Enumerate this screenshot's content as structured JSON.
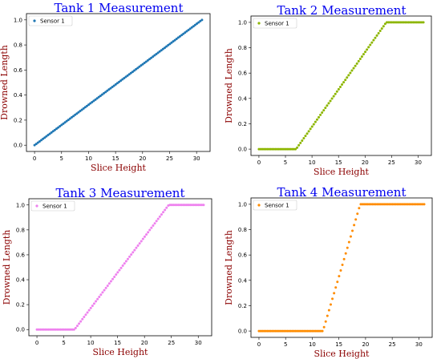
{
  "chart_data": [
    {
      "type": "scatter",
      "title": "Tank 1 Measurement",
      "xlabel": "Slice Height",
      "ylabel": "Drowned Length",
      "xticks": [
        0,
        5,
        10,
        15,
        20,
        25,
        30
      ],
      "yticks": [
        0.0,
        0.2,
        0.4,
        0.6,
        0.8,
        1.0
      ],
      "xlim": [
        -1.5,
        32.5
      ],
      "ylim": [
        -0.05,
        1.05
      ],
      "grid": false,
      "legend_position": "top-left",
      "series": [
        {
          "name": "Sensor 1",
          "color": "#1f77b4",
          "x_range": [
            0,
            31
          ],
          "num_points": 100,
          "profile": {
            "flat_until": 0,
            "rise_until": 31
          }
        }
      ]
    },
    {
      "type": "scatter",
      "title": "Tank 2 Measurement",
      "xlabel": "Slice Height",
      "ylabel": "Drowned Length",
      "xticks": [
        0,
        5,
        10,
        15,
        20,
        25,
        30
      ],
      "yticks": [
        0.0,
        0.2,
        0.4,
        0.6,
        0.8,
        1.0
      ],
      "xlim": [
        -1.5,
        32.5
      ],
      "ylim": [
        -0.05,
        1.05
      ],
      "grid": false,
      "legend_position": "top-left",
      "series": [
        {
          "name": "Sensor 1",
          "color": "#8db600",
          "x_range": [
            0,
            31
          ],
          "num_points": 100,
          "profile": {
            "flat_until": 7,
            "rise_until": 24
          }
        }
      ]
    },
    {
      "type": "scatter",
      "title": "Tank 3 Measurement",
      "xlabel": "Slice Height",
      "ylabel": "Drowned Length",
      "xticks": [
        0,
        5,
        10,
        15,
        20,
        25,
        30
      ],
      "yticks": [
        0.0,
        0.2,
        0.4,
        0.6,
        0.8,
        1.0
      ],
      "xlim": [
        -1.5,
        32.5
      ],
      "ylim": [
        -0.05,
        1.05
      ],
      "grid": false,
      "legend_position": "top-left",
      "series": [
        {
          "name": "Sensor 1",
          "color": "#ee82ee",
          "x_range": [
            0,
            31
          ],
          "num_points": 100,
          "profile": {
            "flat_until": 7,
            "rise_until": 24.5
          }
        }
      ]
    },
    {
      "type": "scatter",
      "title": "Tank 4 Measurement",
      "xlabel": "Slice Height",
      "ylabel": "Drowned Length",
      "xticks": [
        0,
        5,
        10,
        15,
        20,
        25,
        30
      ],
      "yticks": [
        0.0,
        0.2,
        0.4,
        0.6,
        0.8,
        1.0
      ],
      "xlim": [
        -1.5,
        32.5
      ],
      "ylim": [
        -0.05,
        1.05
      ],
      "grid": false,
      "legend_position": "top-left",
      "series": [
        {
          "name": "Sensor 1",
          "color": "#ff8c00",
          "x_range": [
            0,
            31
          ],
          "num_points": 100,
          "profile": {
            "flat_until": 12,
            "rise_until": 19
          }
        }
      ]
    }
  ]
}
